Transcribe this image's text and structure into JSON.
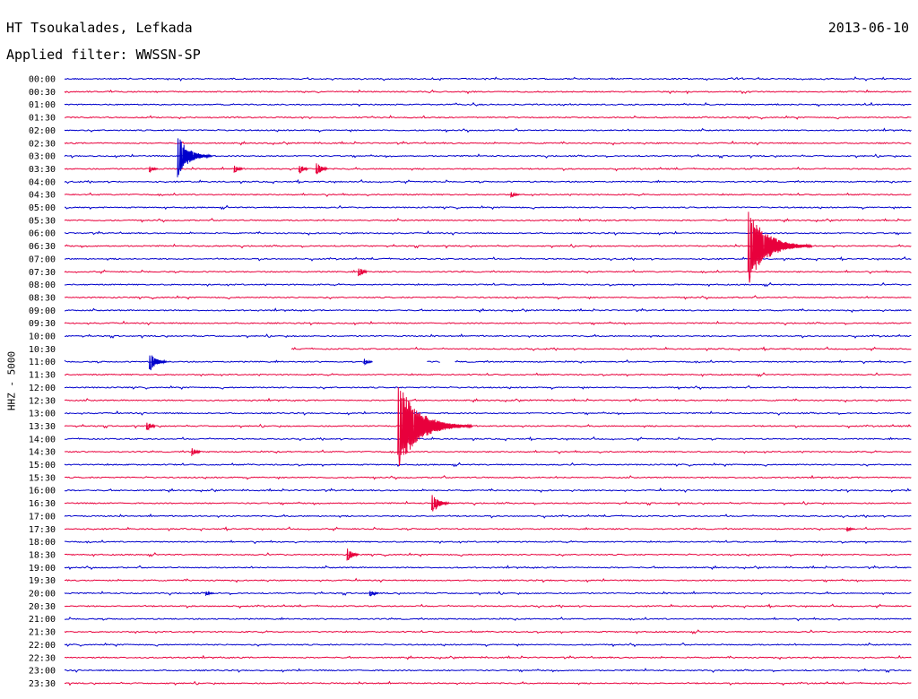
{
  "header": {
    "station": "HT Tsoukalades, Lefkada",
    "date": "2013-06-10",
    "filter": "Applied filter: WWSSN-SP"
  },
  "chart_data": {
    "type": "line",
    "ylabel": "HHZ - 5000",
    "row_labels": [
      "00:00",
      "00:30",
      "01:00",
      "01:30",
      "02:00",
      "02:30",
      "03:00",
      "03:30",
      "04:00",
      "04:30",
      "05:00",
      "05:30",
      "06:00",
      "06:30",
      "07:00",
      "07:30",
      "08:00",
      "08:30",
      "09:00",
      "09:30",
      "10:00",
      "10:30",
      "11:00",
      "11:30",
      "12:00",
      "12:30",
      "13:00",
      "13:30",
      "14:00",
      "14:30",
      "15:00",
      "15:30",
      "16:00",
      "16:30",
      "17:00",
      "17:30",
      "18:00",
      "18:30",
      "19:00",
      "19:30",
      "20:00",
      "20:30",
      "21:00",
      "21:30",
      "22:00",
      "22:30",
      "23:00",
      "23:30"
    ],
    "colors": {
      "even_rows": "#0000cc",
      "odd_rows": "#e8003c"
    },
    "events": [
      {
        "row": "03:00",
        "x_min": 4.0,
        "amplitude": 24
      },
      {
        "row": "03:30",
        "x_min": 3.0,
        "amplitude": 4
      },
      {
        "row": "03:30",
        "x_min": 6.0,
        "amplitude": 5
      },
      {
        "row": "03:30",
        "x_min": 8.3,
        "amplitude": 6
      },
      {
        "row": "03:30",
        "x_min": 8.9,
        "amplitude": 8
      },
      {
        "row": "04:30",
        "x_min": 15.8,
        "amplitude": 4
      },
      {
        "row": "06:30",
        "x_min": 24.2,
        "amplitude": 45
      },
      {
        "row": "07:30",
        "x_min": 10.4,
        "amplitude": 6
      },
      {
        "row": "11:00",
        "x_min": 3.0,
        "amplitude": 12
      },
      {
        "row": "11:00",
        "x_min": 10.6,
        "amplitude": 4
      },
      {
        "row": "13:30",
        "x_min": 11.8,
        "amplitude": 52
      },
      {
        "row": "13:30",
        "x_min": 2.9,
        "amplitude": 6
      },
      {
        "row": "14:30",
        "x_min": 4.5,
        "amplitude": 5
      },
      {
        "row": "16:30",
        "x_min": 13.0,
        "amplitude": 12
      },
      {
        "row": "18:30",
        "x_min": 10.0,
        "amplitude": 8
      },
      {
        "row": "20:00",
        "x_min": 5.0,
        "amplitude": 3
      },
      {
        "row": "20:00",
        "x_min": 10.8,
        "amplitude": 4
      },
      {
        "row": "17:30",
        "x_min": 27.7,
        "amplitude": 3
      }
    ],
    "gaps": [
      {
        "row": "10:30",
        "from_min": 0,
        "to_min": 8.0
      },
      {
        "row": "11:00",
        "from_min": 10.8,
        "to_min": 12.8
      },
      {
        "row": "11:00",
        "from_min": 13.3,
        "to_min": 13.8
      }
    ]
  }
}
